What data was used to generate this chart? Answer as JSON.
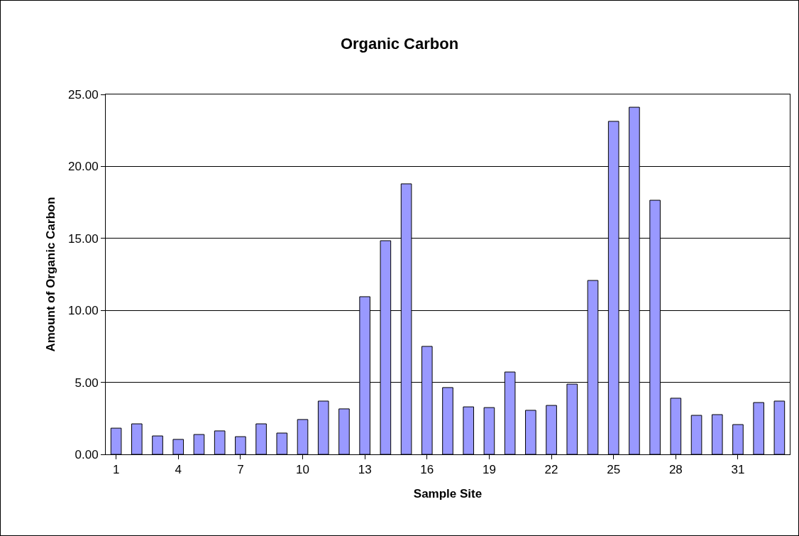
{
  "chart_data": {
    "type": "bar",
    "title": "Organic Carbon",
    "xlabel": "Sample Site",
    "ylabel": "Amount of Organic Carbon",
    "categories": [
      "1",
      null,
      null,
      "4",
      null,
      null,
      "7",
      null,
      null,
      "10",
      null,
      null,
      "13",
      null,
      null,
      "16",
      null,
      null,
      "19",
      null,
      null,
      "22",
      null,
      null,
      "25",
      null,
      null,
      "28",
      null,
      null,
      "31",
      null,
      null
    ],
    "values": [
      1.82,
      2.12,
      1.28,
      1.04,
      1.38,
      1.63,
      1.23,
      2.12,
      1.48,
      2.42,
      3.7,
      3.16,
      10.95,
      14.84,
      18.79,
      7.5,
      4.64,
      3.3,
      3.25,
      5.72,
      3.06,
      3.4,
      4.88,
      12.08,
      23.13,
      24.11,
      17.65,
      3.9,
      2.71,
      2.76,
      2.07,
      3.6,
      3.7
    ],
    "color": "#9999ff",
    "ylim": [
      0,
      25
    ],
    "yticks": [
      {
        "value": 0,
        "label": "0.00"
      },
      {
        "value": 5,
        "label": "5.00"
      },
      {
        "value": 10,
        "label": "10.00"
      },
      {
        "value": 15,
        "label": "15.00"
      },
      {
        "value": 20,
        "label": "20.00"
      },
      {
        "value": 25,
        "label": "25.00"
      }
    ],
    "grid": "y",
    "legend": false
  }
}
